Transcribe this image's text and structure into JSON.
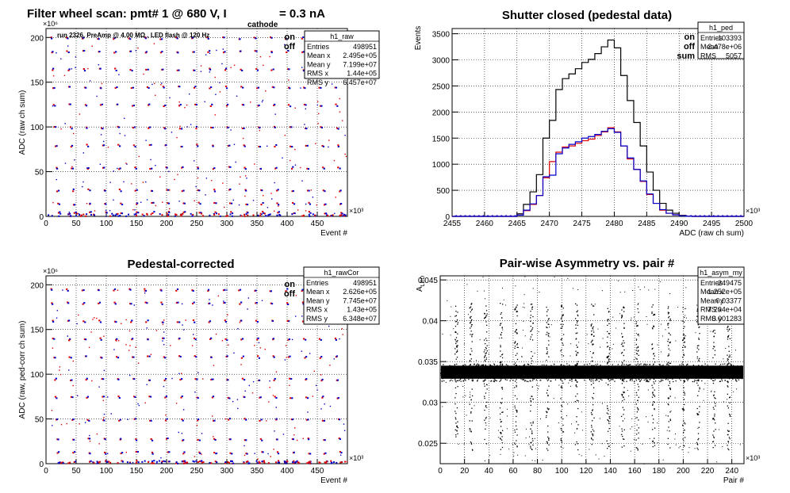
{
  "chart_data": [
    {
      "type": "scatter",
      "id": "raw",
      "title_main": "Filter wheel scan: pmt#   1 @   680 V, I",
      "title_sub": "cathode",
      "title_tail": "= 0.3 nA",
      "subtitle": "run 2326, PreAmp @ 4.00 MΩ , LED flash @  120 Hz",
      "xlabel": "Event #",
      "ylabel": "ADC (raw ch sum)",
      "x_exponent": "×10³",
      "y_exponent": "×10⁶",
      "xlim": [
        0,
        500
      ],
      "ylim": [
        0,
        210
      ],
      "x_ticks": [
        "0",
        "50",
        "100",
        "150",
        "200",
        "250",
        "300",
        "350",
        "400",
        "450"
      ],
      "y_ticks": [
        "0",
        "50",
        "100",
        "150",
        "200"
      ],
      "legend": [
        {
          "name": "on",
          "color": "#e00000"
        },
        {
          "name": "off",
          "color": "#0000cc"
        }
      ],
      "levels": [
        200,
        185,
        165,
        145,
        125,
        100,
        80,
        55,
        30,
        15,
        5
      ],
      "stats": {
        "name": "h1_raw",
        "rows": [
          [
            "Entries",
            "498951"
          ],
          [
            "Mean x",
            "2.495e+05"
          ],
          [
            "Mean y",
            "7.199e+07"
          ],
          [
            "RMS x",
            "1.44e+05"
          ],
          [
            "RMS y",
            "6.457e+07"
          ]
        ]
      }
    },
    {
      "type": "line",
      "id": "ped",
      "title": "Shutter closed (pedestal data)",
      "xlabel": "ADC (raw ch sum)",
      "ylabel": "Events",
      "x_exponent": "×10³",
      "xlim": [
        2455,
        2500
      ],
      "ylim": [
        0,
        3600
      ],
      "x_ticks": [
        "2455",
        "2460",
        "2465",
        "2470",
        "2475",
        "2480",
        "2485",
        "2490",
        "2495",
        "2500"
      ],
      "y_ticks": [
        "0",
        "500",
        "1000",
        "1500",
        "2000",
        "2500",
        "3000",
        "3500"
      ],
      "legend": [
        {
          "name": "on",
          "color": "#e00000"
        },
        {
          "name": "off",
          "color": "#0000cc"
        },
        {
          "name": "sum",
          "color": "#000000"
        }
      ],
      "series": [
        {
          "name": "sum",
          "color": "#000000",
          "x": [
            2465,
            2466,
            2467,
            2468,
            2469,
            2470,
            2471,
            2472,
            2473,
            2474,
            2475,
            2476,
            2477,
            2478,
            2479,
            2480,
            2481,
            2482,
            2483,
            2484,
            2485,
            2486,
            2487,
            2488,
            2489,
            2490,
            2491
          ],
          "values": [
            50,
            230,
            470,
            800,
            1500,
            1840,
            2430,
            2640,
            2730,
            2830,
            2950,
            3010,
            3120,
            3250,
            3380,
            3230,
            2700,
            2220,
            1800,
            1350,
            850,
            500,
            250,
            120,
            60,
            20,
            5
          ]
        },
        {
          "name": "on",
          "color": "#e00000",
          "x": [
            2465,
            2466,
            2467,
            2468,
            2469,
            2470,
            2471,
            2472,
            2473,
            2474,
            2475,
            2476,
            2477,
            2478,
            2479,
            2480,
            2481,
            2482,
            2483,
            2484,
            2485,
            2486,
            2487,
            2488,
            2489,
            2490,
            2491
          ],
          "values": [
            25,
            110,
            230,
            400,
            740,
            1050,
            1230,
            1330,
            1350,
            1400,
            1450,
            1480,
            1550,
            1620,
            1700,
            1620,
            1350,
            1100,
            900,
            670,
            420,
            250,
            120,
            60,
            30,
            10,
            3
          ]
        },
        {
          "name": "off",
          "color": "#0000cc",
          "x": [
            2465,
            2466,
            2467,
            2468,
            2469,
            2470,
            2471,
            2472,
            2473,
            2474,
            2475,
            2476,
            2477,
            2478,
            2479,
            2480,
            2481,
            2482,
            2483,
            2484,
            2485,
            2486,
            2487,
            2488,
            2489,
            2490,
            2491
          ],
          "values": [
            25,
            120,
            240,
            400,
            760,
            790,
            1200,
            1310,
            1380,
            1430,
            1500,
            1530,
            1570,
            1630,
            1680,
            1610,
            1350,
            1120,
            900,
            680,
            430,
            250,
            130,
            60,
            30,
            10,
            2
          ]
        }
      ],
      "stats": {
        "name": "h1_ped",
        "rows": [
          [
            "Entries",
            "103393"
          ],
          [
            "Mean",
            "2.478e+06"
          ],
          [
            "RMS",
            "5057"
          ]
        ]
      }
    },
    {
      "type": "scatter",
      "id": "rawcor",
      "title": "Pedestal-corrected",
      "xlabel": "Event #",
      "ylabel": "ADC (raw, ped-corr ch sum)",
      "x_exponent": "×10³",
      "y_exponent": "×10⁶",
      "xlim": [
        0,
        500
      ],
      "ylim": [
        0,
        210
      ],
      "x_ticks": [
        "0",
        "50",
        "100",
        "150",
        "200",
        "250",
        "300",
        "350",
        "400",
        "450"
      ],
      "y_ticks": [
        "0",
        "50",
        "100",
        "150",
        "200"
      ],
      "legend": [
        {
          "name": "on",
          "color": "#e00000"
        },
        {
          "name": "off",
          "color": "#0000cc"
        }
      ],
      "levels": [
        195,
        180,
        160,
        140,
        120,
        95,
        75,
        50,
        28,
        13,
        3
      ],
      "stats": {
        "name": "h1_rawCor",
        "rows": [
          [
            "Entries",
            "498951"
          ],
          [
            "Mean x",
            "2.626e+05"
          ],
          [
            "Mean y",
            "7.745e+07"
          ],
          [
            "RMS x",
            "1.43e+05"
          ],
          [
            "RMS y",
            "6.348e+07"
          ]
        ]
      }
    },
    {
      "type": "scatter",
      "id": "asym",
      "title": "Pair-wise Asymmetry vs. pair #",
      "xlabel": "Pair #",
      "ylabel": "A_LED",
      "x_exponent": "×10³",
      "xlim": [
        0,
        250
      ],
      "ylim": [
        0.0225,
        0.0455
      ],
      "x_ticks": [
        "0",
        "20",
        "40",
        "60",
        "80",
        "100",
        "120",
        "140",
        "160",
        "180",
        "200",
        "220",
        "240"
      ],
      "y_ticks": [
        "0.025",
        "0.03",
        "0.035",
        "0.04",
        "0.045"
      ],
      "band_center": 0.0337,
      "band_halfwidth": 0.0008,
      "spike_pairs": [
        13,
        25,
        37,
        50,
        62,
        75,
        88,
        100,
        112,
        125,
        138,
        150,
        162,
        175,
        188,
        200,
        212,
        225,
        237
      ],
      "stats": {
        "name": "h1_asym_my",
        "rows": [
          [
            "Entries",
            "249475"
          ],
          [
            "Mean x",
            "1.252e+05"
          ],
          [
            "Mean y",
            "0.03377"
          ],
          [
            "RMS x",
            "7.204e+04"
          ],
          [
            "RMS y",
            "0.001283"
          ]
        ]
      }
    }
  ]
}
